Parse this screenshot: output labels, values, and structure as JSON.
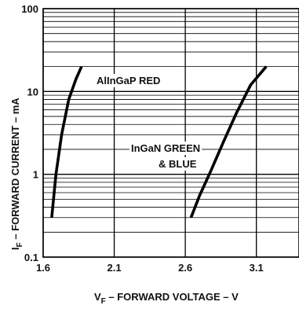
{
  "chart_data": {
    "type": "line",
    "title": "",
    "xlabel": {
      "main": "V",
      "sub": "F",
      "rest": " – FORWARD VOLTAGE – V"
    },
    "ylabel": {
      "main": "I",
      "sub": "F",
      "rest": " – FORWARD CURRENT – mA"
    },
    "xlim": [
      1.6,
      3.4
    ],
    "ylim": [
      0.1,
      100
    ],
    "yscale": "log",
    "grid": true,
    "x_ticks": [
      1.6,
      2.1,
      2.6,
      3.1
    ],
    "x_tick_labels": [
      "1.6",
      "2.1",
      "2.6",
      "3.1"
    ],
    "y_ticks": [
      0.1,
      1,
      10,
      100
    ],
    "y_tick_labels": [
      "0.1",
      "1",
      "10",
      "100"
    ],
    "series": [
      {
        "name": "AlInGaP RED",
        "points": [
          [
            1.66,
            0.3
          ],
          [
            1.69,
            1.0
          ],
          [
            1.73,
            3.0
          ],
          [
            1.78,
            8.0
          ],
          [
            1.83,
            14.0
          ],
          [
            1.87,
            20.0
          ]
        ]
      },
      {
        "name": "InGaN GREEN & BLUE",
        "points": [
          [
            2.64,
            0.3
          ],
          [
            2.7,
            0.55
          ],
          [
            2.78,
            1.1
          ],
          [
            2.87,
            2.5
          ],
          [
            2.96,
            5.5
          ],
          [
            3.06,
            12.0
          ],
          [
            3.17,
            20.0
          ]
        ]
      }
    ],
    "annotations": [
      {
        "lines": [
          "AlInGaP RED"
        ]
      },
      {
        "lines": [
          "InGaN GREEN",
          "& BLUE"
        ]
      }
    ]
  }
}
